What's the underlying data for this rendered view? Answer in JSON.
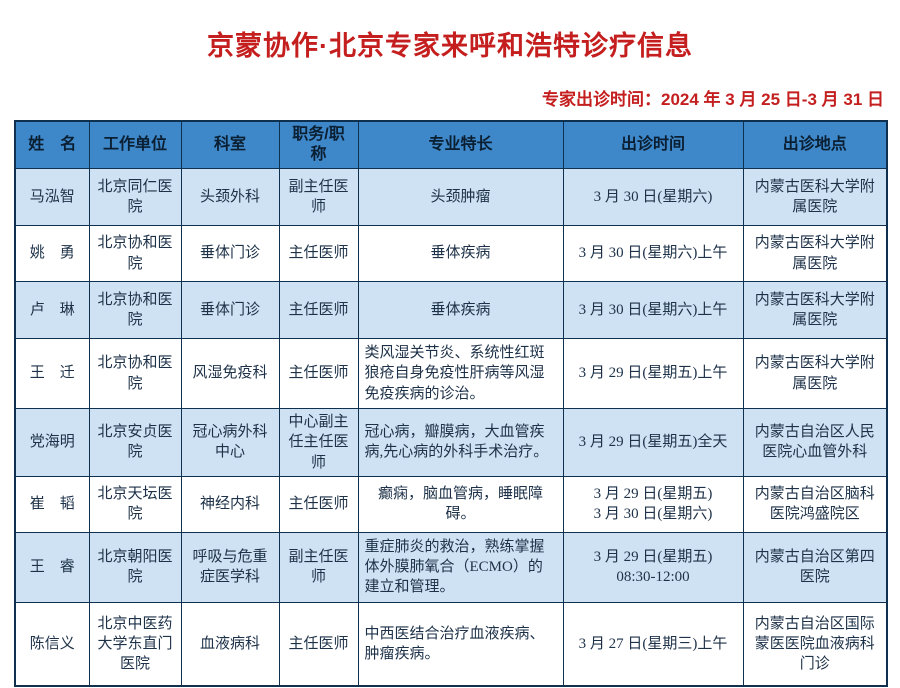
{
  "title": "京蒙协作·北京专家来呼和浩特诊疗信息",
  "subtitle": "专家出诊时间：2024 年 3 月 25 日-3 月 31 日",
  "colors": {
    "header_bg": "#3e88c9",
    "row_alt_bg": "#cfe2f3",
    "border": "#10304f",
    "text": "#1d3148",
    "accent_red": "#c41e1e"
  },
  "table": {
    "headers": [
      "姓　名",
      "工作单位",
      "科室",
      "职务/职称",
      "专业特长",
      "出诊时间",
      "出诊地点"
    ],
    "rows": [
      {
        "name": "马泓智",
        "unit": "北京同仁医院",
        "dept": "头颈外科",
        "job_title": "副主任医师",
        "specialty": "头颈肿瘤",
        "time": "3 月 30 日(星期六)",
        "location": "内蒙古医科大学附属医院"
      },
      {
        "name": "姚　勇",
        "unit": "北京协和医院",
        "dept": "垂体门诊",
        "job_title": "主任医师",
        "specialty": "垂体疾病",
        "time": "3 月 30 日(星期六)上午",
        "location": "内蒙古医科大学附属医院"
      },
      {
        "name": "卢　琳",
        "unit": "北京协和医院",
        "dept": "垂体门诊",
        "job_title": "主任医师",
        "specialty": "垂体疾病",
        "time": "3 月 30 日(星期六)上午",
        "location": "内蒙古医科大学附属医院"
      },
      {
        "name": "王　迁",
        "unit": "北京协和医院",
        "dept": "风湿免疫科",
        "job_title": "主任医师",
        "specialty": "类风湿关节炎、系统性红斑狼疮自身免疫性肝病等风湿免疫疾病的诊治。",
        "time": "3 月 29 日(星期五)上午",
        "location": "内蒙古医科大学附属医院"
      },
      {
        "name": "党海明",
        "unit": "北京安贞医院",
        "dept": "冠心病外科中心",
        "job_title": "中心副主任主任医师",
        "specialty": "冠心病，瓣膜病，大血管疾病,先心病的外科手术治疗。",
        "time": "3 月 29 日(星期五)全天",
        "location": "内蒙古自治区人民医院心血管外科"
      },
      {
        "name": "崔　韬",
        "unit": "北京天坛医院",
        "dept": "神经内科",
        "job_title": "主任医师",
        "specialty": "癫痫，脑血管病，睡眠障碍。",
        "time": "3 月 29 日(星期五)\n3 月 30 日(星期六)",
        "location": "内蒙古自治区脑科医院鸿盛院区"
      },
      {
        "name": "王　睿",
        "unit": "北京朝阳医院",
        "dept": "呼吸与危重症医学科",
        "job_title": "副主任医师",
        "specialty": "重症肺炎的救治，熟练掌握体外膜肺氧合（ECMO）的建立和管理。",
        "time": "3 月 29 日(星期五)\n08:30-12:00",
        "location": "内蒙古自治区第四医院"
      },
      {
        "name": "陈信义",
        "unit": "北京中医药大学东直门医院",
        "dept": "血液病科",
        "job_title": "主任医师",
        "specialty": "中西医结合治疗血液疾病、肿瘤疾病。",
        "time": "3 月 27 日(星期三)上午",
        "location": "内蒙古自治区国际蒙医医院血液病科门诊"
      }
    ]
  }
}
